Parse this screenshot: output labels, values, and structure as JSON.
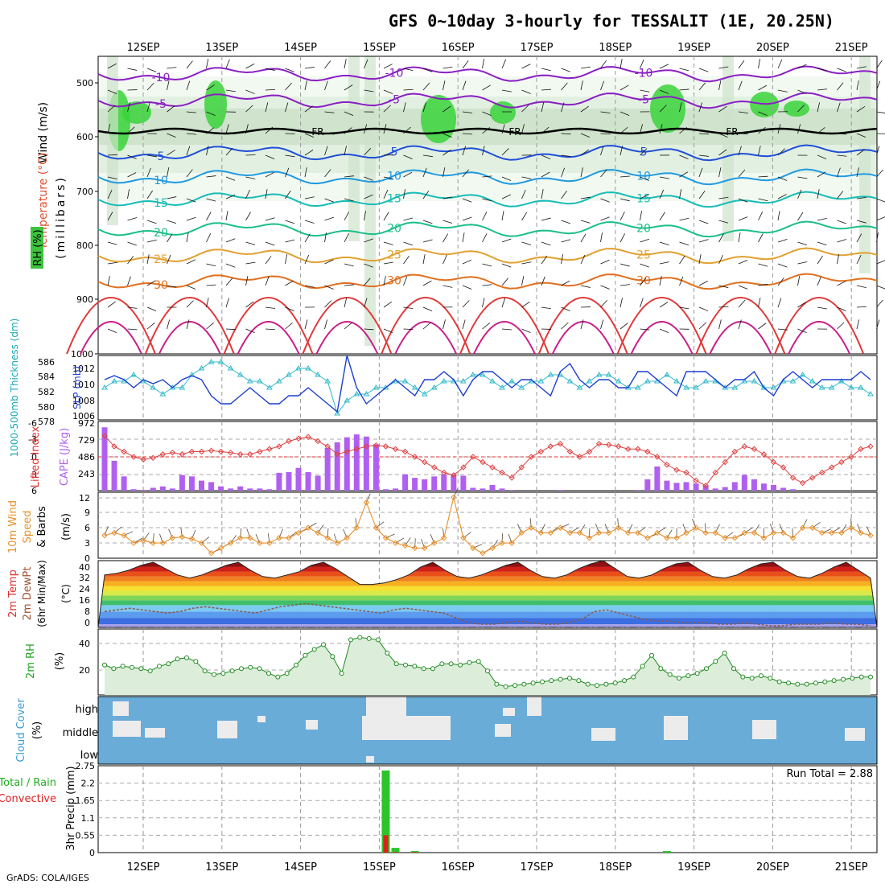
{
  "title": "GFS 0~10day 3-hourly for TESSALIT (1E, 20.25N)",
  "footer": "GrADS: COLA/IGES",
  "dates": [
    "12SEP",
    "13SEP",
    "14SEP",
    "15SEP",
    "16SEP",
    "17SEP",
    "18SEP",
    "19SEP",
    "20SEP",
    "21SEP"
  ],
  "upper": {
    "label_wind": "Wind (m/s)",
    "label_temp": "Temperature (°C)",
    "label_rh": "RH (%)",
    "label_units": "(millibars)",
    "pressure_ticks": [
      "500",
      "600",
      "700",
      "800",
      "900",
      "1000"
    ],
    "freeze_label": "FR",
    "isotherms": [
      {
        "t": "-10",
        "color": "#8a1fc4"
      },
      {
        "t": "-5",
        "color": "#8a1fc4"
      },
      {
        "t": "5",
        "color": "#1f4fd8"
      },
      {
        "t": "10",
        "color": "#1f9ae0"
      },
      {
        "t": "15",
        "color": "#18bcb6"
      },
      {
        "t": "20",
        "color": "#1bbf8a"
      },
      {
        "t": "25",
        "color": "#e2a030"
      },
      {
        "t": "30",
        "color": "#e07020"
      }
    ]
  },
  "slp_panel": {
    "label_thk": "1000-500mb Thickness (dm)",
    "label_slp": "SLP (mb)",
    "thk_ticks": [
      "586",
      "584",
      "582",
      "580",
      "578"
    ],
    "slp_ticks": [
      "1012",
      "1010",
      "1008",
      "1006"
    ]
  },
  "cape_panel": {
    "label_li": "Lifted Index",
    "label_cape": "CAPE (J/kg)",
    "li_ticks": [
      "-3",
      "0",
      "3",
      "6"
    ],
    "cape_ticks": [
      "972",
      "729",
      "486",
      "243"
    ],
    "li_ticks_neg": "-6"
  },
  "wind_panel": {
    "label1": "10m Wind",
    "label2": "Speed",
    "label3": "& Barbs",
    "label4": "(m/s)",
    "ticks": [
      "12",
      "9",
      "6",
      "3",
      "0"
    ]
  },
  "temp_panel": {
    "label1": "2m Temp",
    "label2": "2m DewPt",
    "label3": "(6hr Min/Max)",
    "label4": "(°C)",
    "ticks": [
      "40",
      "32",
      "24",
      "16",
      "8",
      "0"
    ]
  },
  "rh_panel": {
    "label1": "2m RH",
    "label2": "(%)",
    "ticks": [
      "40",
      "20"
    ]
  },
  "cloud_panel": {
    "label1": "Cloud Cover",
    "label2": "(%)",
    "levels": [
      "high",
      "middle",
      "low"
    ]
  },
  "precip_panel": {
    "label1": "Total / Rain",
    "label2": "Convective",
    "label3": "3hr Precip (mm)",
    "ticks": [
      "2.75",
      "2.2",
      "1.65",
      "1.1",
      "0.55",
      "0"
    ],
    "run_total": "Run Total = 2.88"
  },
  "chart_data": {
    "type": "line",
    "title": "GFS 0~10day 3-hourly for TESSALIT (1E, 20.25N)",
    "x_labels": [
      "12SEP",
      "13SEP",
      "14SEP",
      "15SEP",
      "16SEP",
      "17SEP",
      "18SEP",
      "19SEP",
      "20SEP",
      "21SEP"
    ],
    "series": [
      {
        "name": "SLP (mb)",
        "ylim": [
          1005,
          1013
        ],
        "values": [
          1010,
          1010.5,
          1010,
          1009,
          1010,
          1009.5,
          1010,
          1009,
          1010,
          1010.5,
          1010,
          1008,
          1007,
          1007,
          1008,
          1009,
          1008,
          1007,
          1007,
          1008,
          1008,
          1009,
          1008,
          1007,
          1006,
          1013,
          1009,
          1007,
          1008,
          1009,
          1010,
          1009,
          1008,
          1010,
          1010,
          1011,
          1010,
          1008,
          1010,
          1011,
          1011,
          1010,
          1009,
          1010,
          1010,
          1009,
          1008,
          1011,
          1012,
          1010,
          1009,
          1010,
          1010,
          1009,
          1009,
          1011,
          1011,
          1010,
          1009,
          1008,
          1011,
          1011,
          1011,
          1010,
          1009,
          1010,
          1010,
          1011,
          1009,
          1008,
          1010,
          1011,
          1010,
          1009,
          1010,
          1010,
          1010,
          1010,
          1011,
          1010
        ]
      },
      {
        "name": "1000-500mb Thickness (dm)",
        "ylim": [
          577,
          587
        ],
        "values": [
          582,
          583,
          583,
          584,
          583,
          582,
          581,
          582,
          582,
          584,
          585,
          586,
          586,
          585,
          584,
          583,
          583,
          582,
          583,
          584,
          585,
          585,
          584,
          583,
          578,
          580,
          581,
          581,
          582,
          582,
          583,
          583,
          582,
          581,
          582,
          583,
          583,
          583,
          584,
          584,
          583,
          582,
          583,
          582,
          583,
          583,
          584,
          584,
          583,
          582,
          583,
          584,
          584,
          583,
          582,
          582,
          583,
          583,
          584,
          583,
          582,
          582,
          583,
          583,
          582,
          582,
          583,
          583,
          582,
          582,
          583,
          583,
          584,
          583,
          582,
          582,
          583,
          582,
          582,
          581
        ]
      },
      {
        "name": "Lifted Index",
        "ylim": [
          -6,
          6
        ],
        "values": [
          -4,
          -2,
          -1,
          0,
          0.5,
          0.2,
          -0.5,
          -0.8,
          -0.5,
          -1,
          -1,
          -1.2,
          -1,
          -0.8,
          -0.5,
          -0.5,
          -1,
          -1.5,
          -2,
          -3,
          -3.5,
          -3.8,
          -3,
          -2,
          -0.5,
          -1,
          -1.5,
          -2,
          -2.2,
          -2,
          -1.5,
          -1,
          0,
          1,
          2,
          3,
          3.5,
          2,
          0,
          1,
          2,
          3,
          4,
          2,
          0,
          -1,
          -2,
          -2.5,
          -1,
          0,
          -1,
          -2.5,
          -2.3,
          -2,
          -1.5,
          -1.5,
          -1,
          0,
          1.5,
          2.5,
          3,
          4.5,
          5.5,
          3,
          1,
          -1,
          -2,
          -1.5,
          -0.5,
          1,
          2,
          4,
          5,
          4,
          3,
          2,
          1,
          0,
          -1.5,
          -2
        ]
      },
      {
        "name": "CAPE (J/kg)",
        "ylim": [
          0,
          972
        ],
        "values": [
          890,
          420,
          200,
          20,
          10,
          40,
          60,
          30,
          220,
          200,
          140,
          120,
          60,
          30,
          60,
          30,
          30,
          20,
          250,
          260,
          320,
          260,
          210,
          600,
          680,
          750,
          790,
          760,
          650,
          20,
          30,
          230,
          180,
          160,
          200,
          230,
          220,
          210,
          40,
          30,
          80,
          30,
          10,
          0,
          0,
          0,
          0,
          10,
          0,
          0,
          0,
          0,
          0,
          0,
          0,
          10,
          160,
          340,
          140,
          110,
          120,
          100,
          70,
          30,
          50,
          120,
          220,
          160,
          100,
          80,
          40,
          20,
          0,
          0,
          0,
          0,
          0,
          0,
          0,
          0
        ]
      },
      {
        "name": "10m Wind Speed (m/s)",
        "ylim": [
          0,
          13
        ],
        "values": [
          4.5,
          5,
          4.5,
          3,
          3.5,
          3,
          3,
          4,
          4.2,
          3.8,
          3,
          1,
          2,
          3,
          4,
          4,
          3,
          3,
          4,
          4,
          5,
          6,
          5,
          4,
          3,
          4,
          6,
          11,
          6,
          4,
          3,
          2.5,
          2,
          2,
          3,
          4,
          12,
          4,
          2,
          1,
          2,
          3,
          3,
          5,
          6,
          5,
          5,
          6,
          5,
          5,
          4,
          5,
          5,
          6,
          5,
          5,
          4,
          5,
          4,
          4,
          5,
          6,
          5,
          5,
          4,
          4,
          5,
          5,
          4,
          5,
          5,
          4,
          6,
          6,
          5,
          5,
          5,
          6,
          5,
          4.5
        ]
      },
      {
        "name": "2m Temp (C)",
        "ylim": [
          0,
          42
        ],
        "values": [
          33,
          34,
          36,
          39,
          41,
          37,
          33,
          31,
          33,
          36,
          39,
          41,
          36,
          32,
          31,
          33,
          35,
          39,
          41,
          37,
          32,
          27,
          27,
          28,
          30,
          33,
          38,
          41,
          36,
          32,
          31,
          33,
          36,
          39,
          41,
          36,
          32,
          31,
          33,
          37,
          40,
          42,
          37,
          32,
          31,
          33,
          37,
          40,
          41,
          36,
          32,
          31,
          33,
          37,
          40,
          41,
          36,
          32,
          31,
          34,
          38,
          41,
          36,
          31
        ]
      },
      {
        "name": "2m DewPt (C)",
        "ylim": [
          0,
          42
        ],
        "values": [
          10,
          11,
          12,
          11,
          10,
          9,
          10,
          12,
          13,
          12,
          11,
          10,
          9,
          11,
          13,
          14,
          15,
          14,
          13,
          12,
          11,
          10,
          9,
          11,
          12,
          11,
          10,
          9,
          6,
          3,
          2,
          2,
          3,
          4,
          3,
          2,
          2,
          3,
          5,
          10,
          11,
          9,
          7,
          5,
          4,
          4,
          3,
          3,
          3,
          2,
          2,
          3,
          2,
          1,
          1,
          2,
          2,
          2,
          3,
          2,
          2,
          1
        ]
      },
      {
        "name": "2m RH (%)",
        "ylim": [
          0,
          55
        ],
        "values": [
          25,
          22,
          24,
          23,
          22,
          20,
          24,
          26,
          30,
          31,
          28,
          20,
          17,
          18,
          20,
          22,
          23,
          22,
          18,
          15,
          18,
          25,
          33,
          38,
          42,
          32,
          18,
          46,
          48,
          47,
          46,
          35,
          26,
          25,
          24,
          22,
          22,
          26,
          26,
          25,
          27,
          28,
          20,
          9,
          7,
          8,
          9,
          10,
          11,
          12,
          13,
          14,
          12,
          9,
          8,
          9,
          10,
          12,
          15,
          24,
          33,
          22,
          17,
          14,
          16,
          18,
          22,
          28,
          35,
          22,
          15,
          14,
          16,
          14,
          11,
          10,
          9,
          9,
          10,
          11,
          12,
          13,
          14,
          15,
          15
        ]
      },
      {
        "name": "3hr Precip (mm)",
        "ylim": [
          0,
          2.75
        ],
        "values": [
          0,
          0,
          0,
          0,
          0,
          0,
          0,
          0,
          0,
          0,
          0,
          0,
          0,
          0,
          0,
          0,
          0,
          0,
          0,
          0,
          0,
          0,
          0,
          0,
          0,
          0,
          0,
          0,
          0,
          2.6,
          0.15,
          0,
          0.05,
          0,
          0,
          0,
          0,
          0,
          0,
          0,
          0,
          0,
          0,
          0,
          0,
          0,
          0,
          0,
          0,
          0,
          0,
          0,
          0,
          0,
          0,
          0,
          0,
          0,
          0.05,
          0,
          0,
          0,
          0,
          0,
          0,
          0,
          0,
          0,
          0,
          0,
          0,
          0,
          0,
          0,
          0,
          0,
          0,
          0,
          0,
          0
        ],
        "convective": [
          0,
          0,
          0,
          0,
          0,
          0,
          0,
          0,
          0,
          0,
          0,
          0,
          0,
          0,
          0,
          0,
          0,
          0,
          0,
          0,
          0,
          0,
          0,
          0,
          0,
          0,
          0,
          0,
          0,
          0.55,
          0.02,
          0,
          0.02,
          0,
          0,
          0,
          0,
          0,
          0,
          0,
          0,
          0,
          0,
          0,
          0,
          0,
          0,
          0,
          0,
          0,
          0,
          0,
          0,
          0,
          0,
          0,
          0,
          0,
          0,
          0,
          0,
          0,
          0,
          0,
          0,
          0,
          0,
          0,
          0,
          0,
          0,
          0,
          0,
          0,
          0,
          0,
          0,
          0,
          0,
          0
        ]
      }
    ]
  }
}
